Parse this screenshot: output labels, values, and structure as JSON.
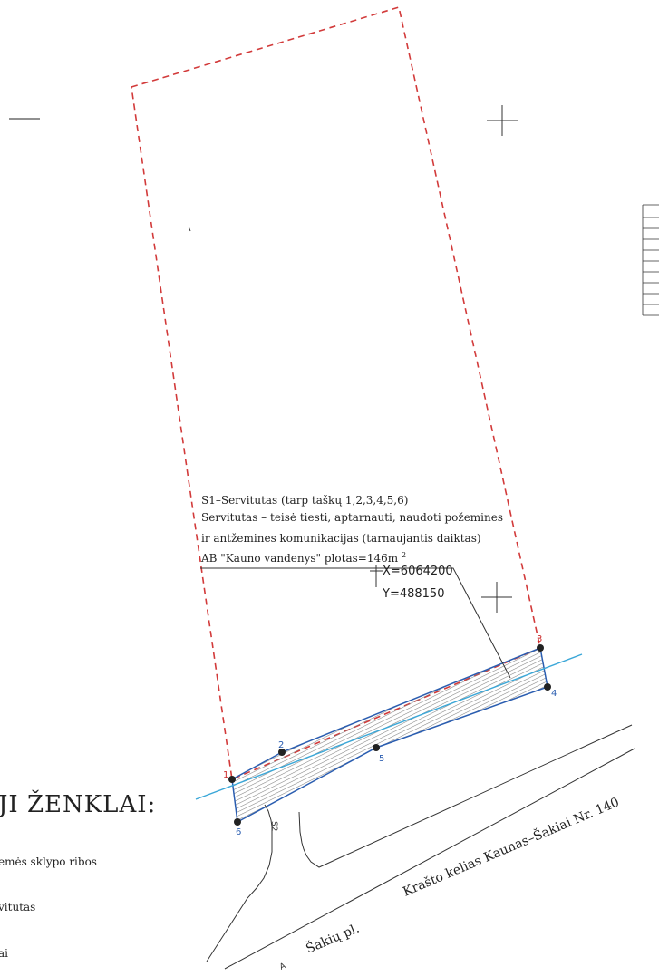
{
  "colors": {
    "parcel_boundary": "#d23a3a",
    "water_pipe": "#3aa7d8",
    "servitude_edge": "#2a5db0",
    "hatch": "#808080",
    "road_line": "#333333",
    "point_marker": "#222222"
  },
  "annotation": {
    "line1": "S1–Servitutas (tarp taškų 1,2,3,4,5,6)",
    "line2": "Servitutas – teisė tiesti, aptarnauti, naudoti požemines",
    "line3": "ir antžemines komunikacijas (tarnaujantis daiktas)",
    "line4": "AB \"Kauno vandenys\" plotas=146m",
    "line4_sup": "2"
  },
  "grid_coordinates": {
    "x": "X=6064200",
    "y": "Y=488150"
  },
  "points": {
    "p1": "1",
    "p2": "2",
    "p3": "3",
    "p4": "4",
    "p5": "5",
    "p6": "6"
  },
  "roads": {
    "main_road": "Krašto kelias Kaunas–Šakiai Nr. 140",
    "street": "Šakių pl.",
    "small_mark": "A",
    "driveway_mark": "S2"
  },
  "legend": {
    "title": "JI ŽENKLAI:",
    "items": [
      "emės sklypo ribos",
      "vitutas",
      "ai"
    ]
  }
}
